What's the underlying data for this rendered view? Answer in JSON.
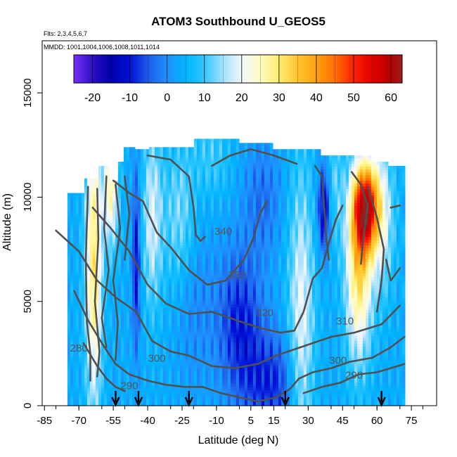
{
  "chart_data": {
    "type": "heatmap",
    "title": "ATOM3 Southbound U_GEOS5",
    "flights_label": "Flts: 2,3,4,5,6,7",
    "mmdd_label": "MMDD: 1001,1004,1006,1008,1011,1014",
    "xlabel": "Latitude (deg N)",
    "ylabel": "Altitude (m)",
    "xlim": [
      -86,
      86
    ],
    "ylim": [
      0,
      17500
    ],
    "x_ticks": [
      -85,
      -70,
      -55,
      -40,
      -25,
      -10,
      5,
      15,
      30,
      45,
      60,
      75
    ],
    "y_ticks": [
      0,
      5000,
      10000,
      15000
    ],
    "colorbar": {
      "range": [
        -25,
        63
      ],
      "ticks": [
        -20,
        -10,
        0,
        10,
        20,
        30,
        40,
        50,
        60
      ],
      "stops": [
        {
          "v": -25,
          "color": "#7b2ff7"
        },
        {
          "v": -20,
          "color": "#2a10c8"
        },
        {
          "v": -15,
          "color": "#0000a8"
        },
        {
          "v": -10,
          "color": "#0010d8"
        },
        {
          "v": -5,
          "color": "#1f5fe8"
        },
        {
          "v": 0,
          "color": "#1e90ff"
        },
        {
          "v": 5,
          "color": "#00b4ff"
        },
        {
          "v": 10,
          "color": "#30c8ff"
        },
        {
          "v": 15,
          "color": "#a6e0ff"
        },
        {
          "v": 20,
          "color": "#f2f7ff"
        },
        {
          "v": 25,
          "color": "#fffcc0"
        },
        {
          "v": 30,
          "color": "#ffec70"
        },
        {
          "v": 35,
          "color": "#ffc530"
        },
        {
          "v": 40,
          "color": "#ff9f10"
        },
        {
          "v": 45,
          "color": "#ff7000"
        },
        {
          "v": 50,
          "color": "#ff2000"
        },
        {
          "v": 55,
          "color": "#e00000"
        },
        {
          "v": 60,
          "color": "#b80000"
        },
        {
          "v": 63,
          "color": "#962020"
        }
      ]
    },
    "contour_labels": [
      {
        "text": "340",
        "lat": -7,
        "alt": 8200
      },
      {
        "text": "330",
        "lat": -1,
        "alt": 6100
      },
      {
        "text": "320",
        "lat": 11,
        "alt": 4300
      },
      {
        "text": "310",
        "lat": 46,
        "alt": 3900
      },
      {
        "text": "300",
        "lat": -36,
        "alt": 2100
      },
      {
        "text": "300",
        "lat": 43,
        "alt": 2000
      },
      {
        "text": "290",
        "lat": -48,
        "alt": 800
      },
      {
        "text": "290",
        "lat": 50,
        "alt": 1300
      },
      {
        "text": "280",
        "lat": -70,
        "alt": 2600
      }
    ],
    "profile_markers_lat": [
      -54,
      -44,
      -22,
      20,
      62
    ]
  }
}
